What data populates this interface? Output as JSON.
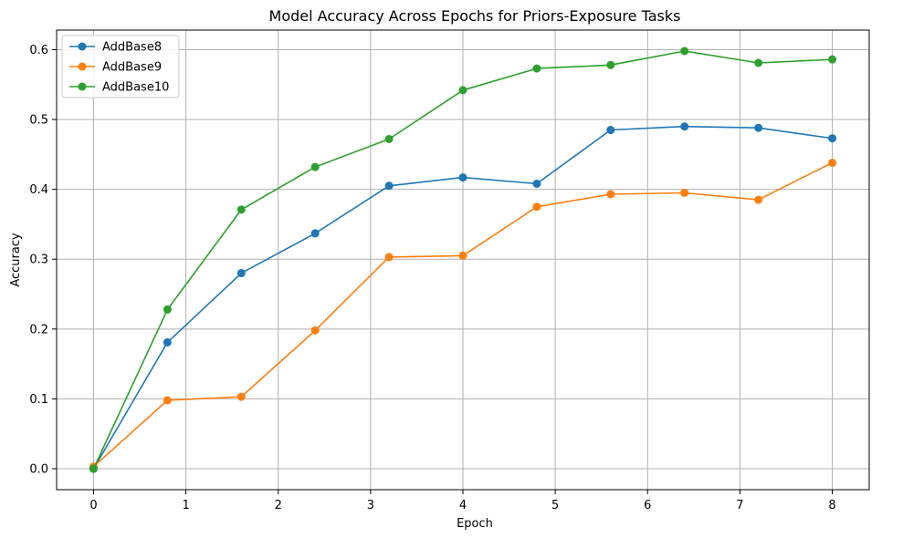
{
  "chart_data": {
    "type": "line",
    "title": "Model Accuracy Across Epochs for Priors-Exposure Tasks",
    "xlabel": "Epoch",
    "ylabel": "Accuracy",
    "xlim": [
      -0.4,
      8.4
    ],
    "ylim": [
      -0.03,
      0.628
    ],
    "xticks": [
      0,
      1,
      2,
      3,
      4,
      5,
      6,
      7,
      8
    ],
    "yticks": [
      0.0,
      0.1,
      0.2,
      0.3,
      0.4,
      0.5,
      0.6
    ],
    "ytick_labels": [
      "0.0",
      "0.1",
      "0.2",
      "0.3",
      "0.4",
      "0.5",
      "0.6"
    ],
    "grid": true,
    "legend_position": "top-left",
    "x": [
      0,
      0.8,
      1.6,
      2.4,
      3.2,
      4.0,
      4.8,
      5.6,
      6.4,
      7.2,
      8.0
    ],
    "series": [
      {
        "name": "AddBase8",
        "color": "#1f77b4",
        "values": [
          0.0,
          0.181,
          0.28,
          0.337,
          0.405,
          0.417,
          0.408,
          0.485,
          0.49,
          0.488,
          0.473
        ]
      },
      {
        "name": "AddBase9",
        "color": "#ff7f0e",
        "values": [
          0.003,
          0.098,
          0.103,
          0.198,
          0.303,
          0.305,
          0.375,
          0.393,
          0.395,
          0.385,
          0.438
        ]
      },
      {
        "name": "AddBase10",
        "color": "#2ca02c",
        "values": [
          0.0,
          0.228,
          0.371,
          0.432,
          0.472,
          0.542,
          0.573,
          0.578,
          0.598,
          0.581,
          0.586
        ]
      }
    ]
  }
}
